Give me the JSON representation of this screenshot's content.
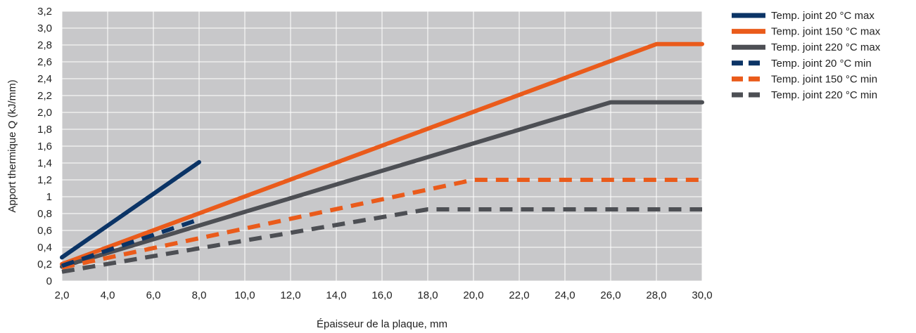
{
  "chart_data": {
    "type": "line",
    "title": "",
    "xlabel": "Épaisseur de la plaque, mm",
    "ylabel": "Apport thermique Q (kJ/mm)",
    "xlim": [
      2,
      30
    ],
    "ylim": [
      0,
      3.2
    ],
    "x_ticks": [
      "2,0",
      "4,0",
      "6,0",
      "8,0",
      "10,0",
      "12,0",
      "14,0",
      "16,0",
      "18,0",
      "20,0",
      "22,0",
      "24,0",
      "26,0",
      "28,0",
      "30,0"
    ],
    "y_ticks": [
      "0",
      "0,2",
      "0,4",
      "0,6",
      "0,8",
      "1",
      "1,2",
      "1,4",
      "1,6",
      "1,8",
      "2,0",
      "2,2",
      "2,4",
      "2,6",
      "2,8",
      "3,0",
      "3,2"
    ],
    "grid": true,
    "background_color": "#c8c8ca",
    "legend_position": "right",
    "series": [
      {
        "name": "Temp. joint 20 °C max",
        "color": "#0b3466",
        "style": "solid",
        "x": [
          2,
          8
        ],
        "y": [
          0.28,
          1.41
        ]
      },
      {
        "name": "Temp. joint 150 °C max",
        "color": "#ea5b1b",
        "style": "solid",
        "x": [
          2,
          28,
          30
        ],
        "y": [
          0.2,
          2.81,
          2.81
        ]
      },
      {
        "name": "Temp. joint 220 °C max",
        "color": "#4d4f54",
        "style": "solid",
        "x": [
          2,
          26,
          30
        ],
        "y": [
          0.17,
          2.12,
          2.12
        ]
      },
      {
        "name": "Temp. joint 20 °C min",
        "color": "#0b3466",
        "style": "dashed",
        "x": [
          2,
          8
        ],
        "y": [
          0.18,
          0.73
        ]
      },
      {
        "name": "Temp. joint 150 °C min",
        "color": "#ea5b1b",
        "style": "dashed",
        "x": [
          2,
          20,
          30
        ],
        "y": [
          0.16,
          1.2,
          1.2
        ]
      },
      {
        "name": "Temp. joint 220 °C min",
        "color": "#4d4f54",
        "style": "dashed",
        "x": [
          2,
          18,
          30
        ],
        "y": [
          0.11,
          0.85,
          0.85
        ]
      }
    ]
  }
}
